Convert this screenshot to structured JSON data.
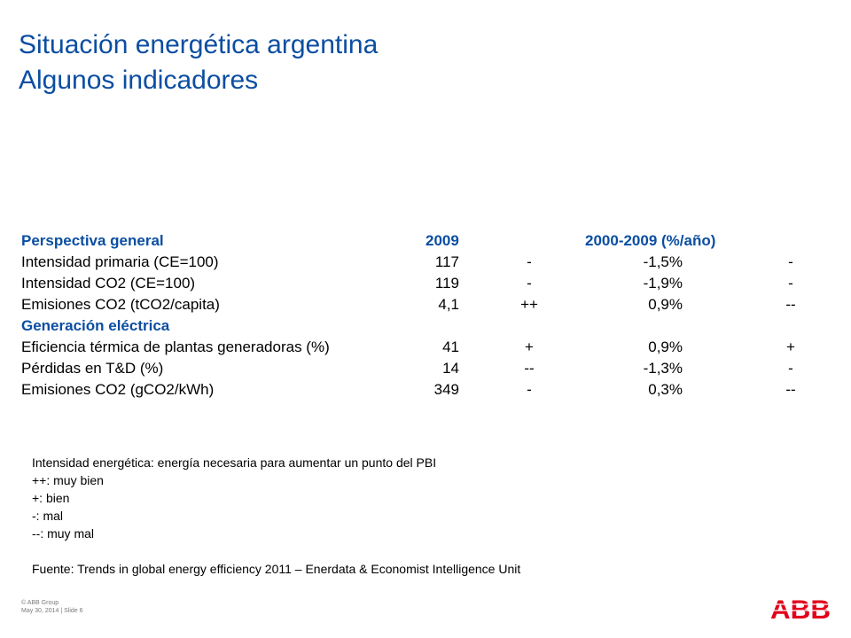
{
  "slide": {
    "title": "Situación energética argentina",
    "subtitle": "Algunos indicadores"
  },
  "table": {
    "header": {
      "label": "Perspectiva general",
      "year": "2009",
      "period": "2000-2009 (%/año)"
    },
    "rows_general": [
      {
        "label": "Intensidad primaria (CE=100)",
        "value": "117",
        "rating_2009": "-",
        "change": "-1,5%",
        "rating_change": "-"
      },
      {
        "label": "Intensidad CO2 (CE=100)",
        "value": "119",
        "rating_2009": "-",
        "change": "-1,9%",
        "rating_change": "-"
      },
      {
        "label": "Emisiones CO2 (tCO2/capita)",
        "value": "4,1",
        "rating_2009": "++",
        "change": "0,9%",
        "rating_change": "--"
      }
    ],
    "section_electric": "Generación eléctrica",
    "rows_electric": [
      {
        "label": "Eficiencia térmica de plantas generadoras (%)",
        "value": "41",
        "rating_2009": "+",
        "change": "0,9%",
        "rating_change": "+"
      },
      {
        "label": "Pérdidas en T&D (%)",
        "value": "14",
        "rating_2009": "--",
        "change": "-1,3%",
        "rating_change": "-"
      },
      {
        "label": "Emisiones CO2 (gCO2/kWh)",
        "value": "349",
        "rating_2009": "-",
        "change": "0,3%",
        "rating_change": "--"
      }
    ]
  },
  "notes": [
    "Intensidad energética: energía necesaria para aumentar un punto del PBI",
    "++: muy bien",
    "+: bien",
    "-: mal",
    "--: muy mal"
  ],
  "source": "Fuente: Trends in global energy efficiency 2011 – Enerdata & Economist Intelligence Unit",
  "footer": {
    "copyright": "© ABB Group",
    "date_slide": "May 30, 2014 | Slide 6"
  },
  "logo": {
    "text": "ABB",
    "color": "#e2001a"
  },
  "colors": {
    "heading": "#0b4ea2"
  }
}
